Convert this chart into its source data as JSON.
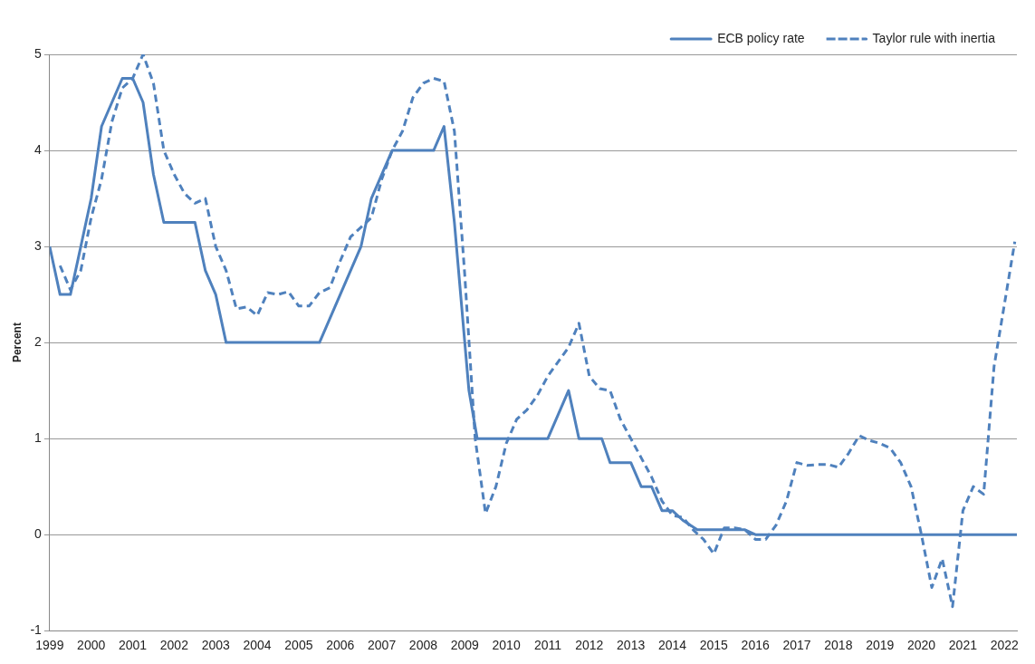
{
  "chart_data": {
    "type": "line",
    "ylabel": "Percent",
    "xlim": [
      1999,
      2022.3
    ],
    "xticks": [
      1999,
      2000,
      2001,
      2002,
      2003,
      2004,
      2005,
      2006,
      2007,
      2008,
      2009,
      2010,
      2011,
      2012,
      2013,
      2014,
      2015,
      2016,
      2017,
      2018,
      2019,
      2020,
      2021,
      2022
    ],
    "ylim": [
      -1,
      5
    ],
    "yticks": [
      -1,
      0,
      1,
      2,
      3,
      4,
      5
    ],
    "grid": "y",
    "legend": "top right",
    "marker": "none",
    "series": [
      {
        "name": "ECB policy rate",
        "color": "#4f81bd",
        "line_style": "solid",
        "x": [
          1999,
          1999.25,
          1999.5,
          1999.75,
          2000,
          2000.25,
          2000.5,
          2000.75,
          2001,
          2001.25,
          2001.5,
          2001.75,
          2002,
          2002.25,
          2002.5,
          2002.75,
          2003,
          2003.25,
          2003.5,
          2004,
          2004.5,
          2005,
          2005.5,
          2005.75,
          2006,
          2006.25,
          2006.5,
          2006.75,
          2007,
          2007.25,
          2007.5,
          2008,
          2008.25,
          2008.5,
          2008.75,
          2008.9,
          2009,
          2009.1,
          2009.3,
          2009.5,
          2010,
          2010.5,
          2011,
          2011.25,
          2011.5,
          2011.75,
          2012,
          2012.3,
          2012.5,
          2013,
          2013.25,
          2013.5,
          2013.75,
          2014,
          2014.25,
          2014.6,
          2015,
          2015.75,
          2016,
          2017,
          2018,
          2019,
          2020,
          2021,
          2022,
          2022.3
        ],
        "values": [
          3,
          2.5,
          2.5,
          3,
          3.5,
          4.25,
          4.5,
          4.75,
          4.75,
          4.5,
          3.75,
          3.25,
          3.25,
          3.25,
          3.25,
          2.75,
          2.5,
          2,
          2,
          2,
          2,
          2,
          2,
          2.25,
          2.5,
          2.75,
          3,
          3.5,
          3.75,
          4,
          4,
          4,
          4,
          4.25,
          3.25,
          2.5,
          2,
          1.5,
          1,
          1,
          1,
          1,
          1,
          1.25,
          1.5,
          1,
          1,
          1,
          0.75,
          0.75,
          0.5,
          0.5,
          0.25,
          0.25,
          0.15,
          0.05,
          0.05,
          0.05,
          0,
          0,
          0,
          0,
          0,
          0,
          0,
          0
        ]
      },
      {
        "name": "Taylor rule with inertia",
        "color": "#4f81bd",
        "line_style": "dashed",
        "x": [
          1999.25,
          1999.5,
          1999.75,
          2000,
          2000.25,
          2000.5,
          2000.75,
          2001,
          2001.25,
          2001.5,
          2001.75,
          2002,
          2002.25,
          2002.5,
          2002.75,
          2003,
          2003.25,
          2003.5,
          2003.75,
          2004,
          2004.25,
          2004.5,
          2004.75,
          2005,
          2005.25,
          2005.5,
          2005.75,
          2006,
          2006.25,
          2006.5,
          2006.75,
          2007,
          2007.25,
          2007.5,
          2007.75,
          2008,
          2008.25,
          2008.5,
          2008.75,
          2009,
          2009.25,
          2009.5,
          2009.75,
          2010,
          2010.25,
          2010.5,
          2010.75,
          2011,
          2011.25,
          2011.5,
          2011.75,
          2012,
          2012.25,
          2012.5,
          2012.75,
          2013,
          2013.25,
          2013.5,
          2013.75,
          2014,
          2014.25,
          2014.5,
          2014.75,
          2015,
          2015.25,
          2015.5,
          2015.75,
          2016,
          2016.25,
          2016.5,
          2016.75,
          2017,
          2017.25,
          2017.5,
          2017.75,
          2018,
          2018.25,
          2018.5,
          2018.75,
          2019,
          2019.25,
          2019.5,
          2019.75,
          2020,
          2020.25,
          2020.5,
          2020.75,
          2021,
          2021.25,
          2021.5,
          2021.75,
          2022,
          2022.25
        ],
        "values": [
          2.8,
          2.55,
          2.75,
          3.3,
          3.7,
          4.3,
          4.65,
          4.75,
          5,
          4.7,
          4,
          3.75,
          3.55,
          3.45,
          3.5,
          3,
          2.75,
          2.35,
          2.37,
          2.28,
          2.52,
          2.5,
          2.53,
          2.38,
          2.38,
          2.52,
          2.57,
          2.85,
          3.1,
          3.2,
          3.3,
          3.7,
          4,
          4.2,
          4.55,
          4.7,
          4.75,
          4.72,
          4.2,
          2.7,
          1,
          0.22,
          0.5,
          0.95,
          1.2,
          1.3,
          1.45,
          1.65,
          1.8,
          1.95,
          2.2,
          1.65,
          1.52,
          1.5,
          1.2,
          1,
          0.8,
          0.6,
          0.35,
          0.2,
          0.18,
          0.05,
          -0.05,
          -0.2,
          0.07,
          0.07,
          0.05,
          -0.05,
          -0.05,
          0.1,
          0.35,
          0.75,
          0.72,
          0.73,
          0.73,
          0.7,
          0.85,
          1.03,
          0.98,
          0.95,
          0.9,
          0.75,
          0.5,
          0,
          -0.55,
          -0.25,
          -0.75,
          0.25,
          0.5,
          0.42,
          1.75,
          2.4,
          3.05
        ]
      }
    ]
  }
}
